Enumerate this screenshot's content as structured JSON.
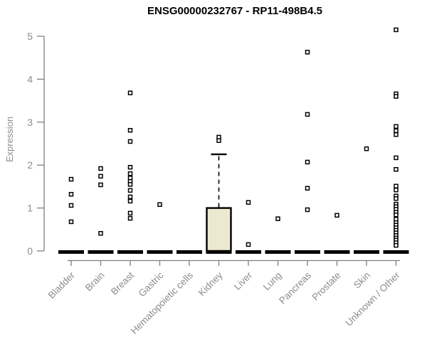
{
  "chart_data": {
    "type": "boxplot",
    "title": "ENSG00000232767 - RP11-498B4.5",
    "xlabel": "",
    "ylabel": "Expression",
    "ylim": [
      0,
      5.2
    ],
    "yticks": [
      0,
      1,
      2,
      3,
      4,
      5
    ],
    "grid": false,
    "legend": "none",
    "colors": {
      "box_fill": "#ede8d0",
      "box_stroke": "#000000",
      "median": "#000000",
      "outlier": "#000000",
      "axis": "#7f7f7f",
      "tick_label": "#8c8c8c",
      "title": "#000000"
    },
    "categories": [
      "Bladder",
      "Brain",
      "Breast",
      "Gastric",
      "Hematopoietic cells",
      "Kidney",
      "Liver",
      "Lung",
      "Pancreas",
      "Prostate",
      "Skin",
      "Unknown / Other"
    ],
    "series": [
      {
        "category": "Bladder",
        "median": 0,
        "q1": 0,
        "q3": 0,
        "whisker_low": 0,
        "whisker_high": 0,
        "outliers": [
          1.67,
          1.32,
          1.06,
          0.68
        ]
      },
      {
        "category": "Brain",
        "median": 0,
        "q1": 0,
        "q3": 0,
        "whisker_low": 0,
        "whisker_high": 0,
        "outliers": [
          1.92,
          1.74,
          1.54,
          0.41
        ]
      },
      {
        "category": "Breast",
        "median": 0,
        "q1": 0,
        "q3": 0,
        "whisker_low": 0,
        "whisker_high": 0,
        "outliers": [
          3.68,
          2.81,
          2.55,
          1.95,
          1.8,
          1.7,
          1.62,
          1.55,
          1.41,
          1.26,
          1.16,
          0.88,
          0.76
        ]
      },
      {
        "category": "Gastric",
        "median": 0,
        "q1": 0,
        "q3": 0,
        "whisker_low": 0,
        "whisker_high": 0,
        "outliers": [
          1.08
        ]
      },
      {
        "category": "Hematopoietic cells",
        "median": 0,
        "q1": 0,
        "q3": 0,
        "whisker_low": 0,
        "whisker_high": 0,
        "outliers": []
      },
      {
        "category": "Kidney",
        "median": 0,
        "q1": 0,
        "q3": 1.0,
        "whisker_low": 0,
        "whisker_high": 2.25,
        "outliers": [
          2.65,
          2.57
        ]
      },
      {
        "category": "Liver",
        "median": 0,
        "q1": 0,
        "q3": 0,
        "whisker_low": 0,
        "whisker_high": 0,
        "outliers": [
          1.13,
          0.15
        ]
      },
      {
        "category": "Lung",
        "median": 0,
        "q1": 0,
        "q3": 0,
        "whisker_low": 0,
        "whisker_high": 0,
        "outliers": [
          0.75
        ]
      },
      {
        "category": "Pancreas",
        "median": 0,
        "q1": 0,
        "q3": 0,
        "whisker_low": 0,
        "whisker_high": 0,
        "outliers": [
          4.63,
          3.18,
          2.07,
          1.46,
          0.96
        ]
      },
      {
        "category": "Prostate",
        "median": 0,
        "q1": 0,
        "q3": 0,
        "whisker_low": 0,
        "whisker_high": 0,
        "outliers": [
          0.83
        ]
      },
      {
        "category": "Skin",
        "median": 0,
        "q1": 0,
        "q3": 0,
        "whisker_low": 0,
        "whisker_high": 0,
        "outliers": [
          2.38
        ]
      },
      {
        "category": "Unknown / Other",
        "median": 0,
        "q1": 0,
        "q3": 0,
        "whisker_low": 0,
        "whisker_high": 0,
        "outliers": [
          5.15,
          3.66,
          3.6,
          2.9,
          2.8,
          2.71,
          2.17,
          1.9,
          1.51,
          1.42,
          1.28,
          1.22,
          1.09,
          1.03,
          0.97,
          0.9,
          0.84,
          0.74,
          0.66,
          0.6,
          0.54,
          0.48,
          0.42,
          0.36,
          0.3,
          0.25,
          0.19,
          0.13
        ]
      }
    ]
  }
}
